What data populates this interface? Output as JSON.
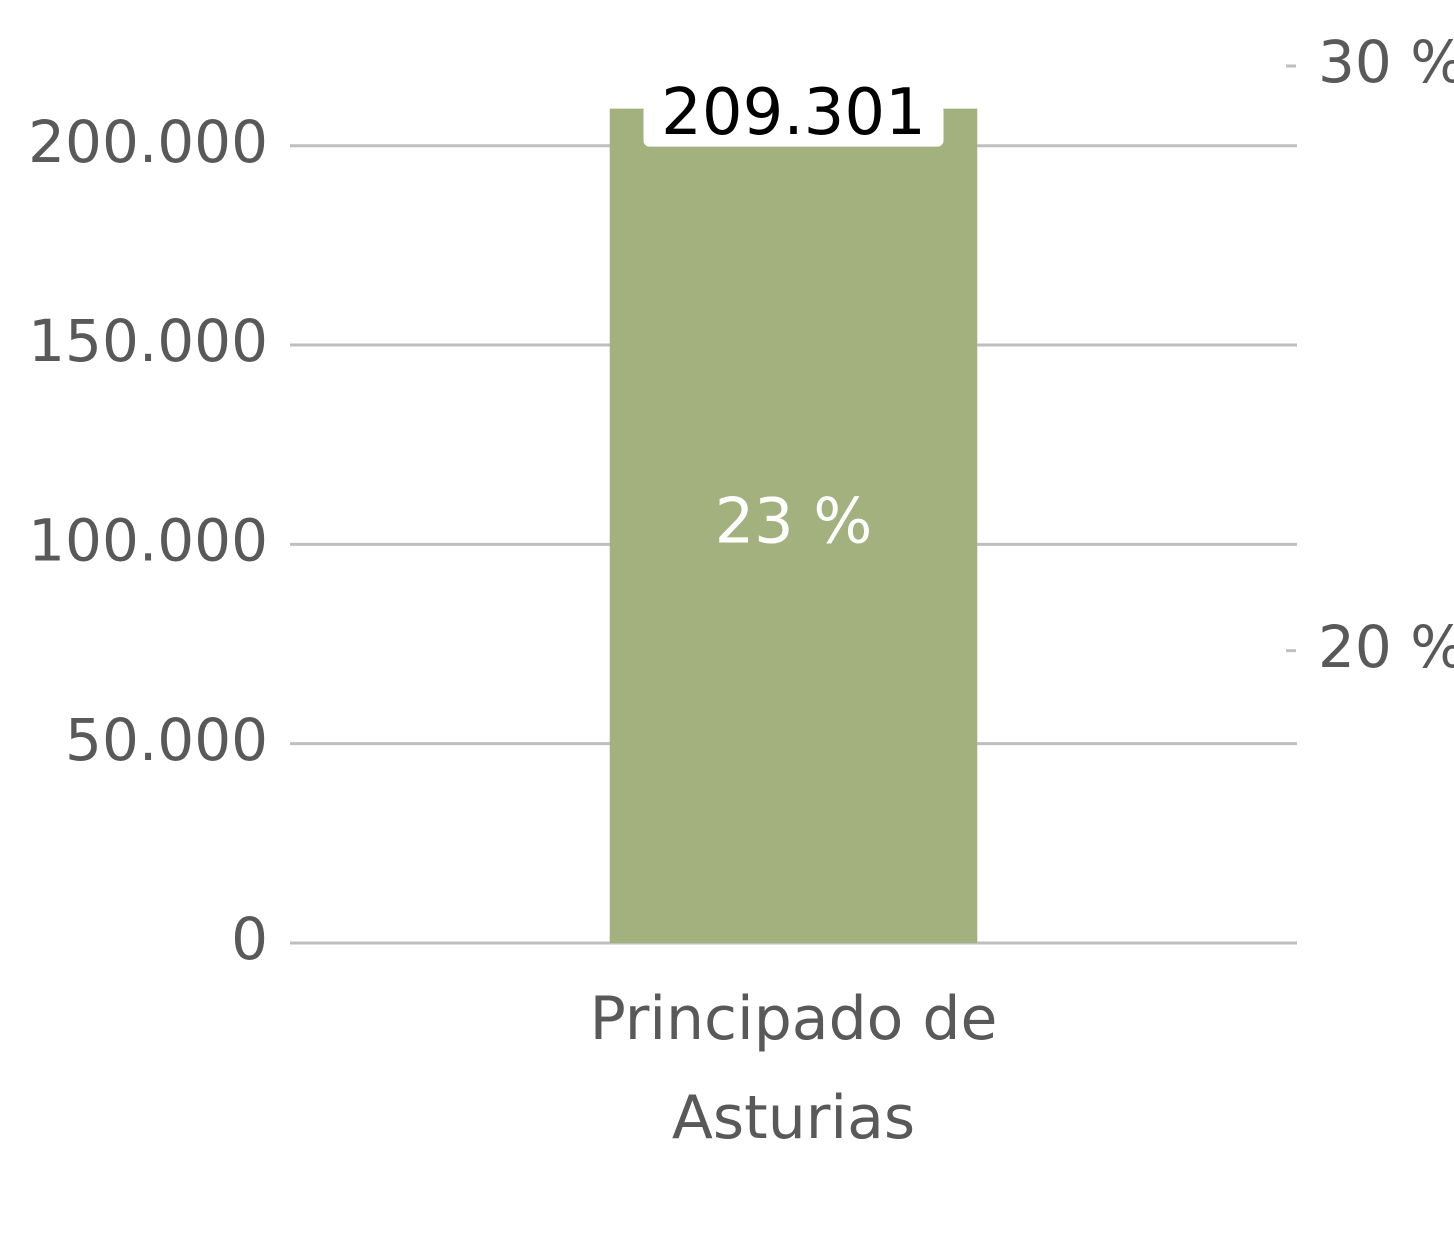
{
  "chart_data": {
    "type": "bar",
    "categories": [
      "Principado de Asturias"
    ],
    "series": [
      {
        "color": "#a3b17f",
        "values": [
          209301
        ],
        "value_labels": [
          "209.301"
        ]
      },
      {
        "axis": "y2",
        "color": "#ffffff",
        "values": [
          23
        ],
        "value_labels": [
          "23 %"
        ]
      }
    ],
    "ylim": [
      0,
      220000
    ],
    "yticks": [
      0,
      {
        "value": 50000,
        "label": "50.000"
      },
      {
        "value": 100000,
        "label": "100.000"
      },
      {
        "value": 150000,
        "label": "150.000"
      },
      {
        "value": 200000,
        "label": "200.000"
      }
    ],
    "y2lim": [
      15,
      30
    ],
    "y2ticks": [
      {
        "value": 20,
        "label": "20 %"
      },
      {
        "value": 30,
        "label": "30 %"
      }
    ],
    "grid": true
  }
}
